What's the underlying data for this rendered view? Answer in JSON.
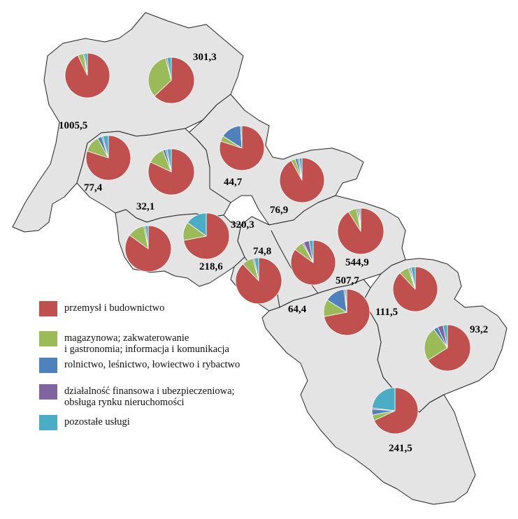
{
  "colors": {
    "industry": "#c0504d",
    "storage": "#9bbb59",
    "agriculture": "#4f81bd",
    "finance": "#8064a2",
    "other": "#4bacc6",
    "region_fill": "#e4e4e4"
  },
  "legend": [
    {
      "key": "industry",
      "lines": [
        "przemysł i budownictwo"
      ]
    },
    {
      "key": "storage",
      "lines": [
        "magazynowa; zakwaterowanie",
        "i gastronomia; informacja i komunikacja"
      ]
    },
    {
      "key": "agriculture",
      "lines": [
        "rolnictwo, leśnictwo, łowiectwo i rybactwo"
      ]
    },
    {
      "key": "finance",
      "lines": [
        "działalność finansowa i ubezpieczeniowa;",
        "obsługa rynku nieruchomości"
      ]
    },
    {
      "key": "other",
      "lines": [
        "pozostałe usługi"
      ]
    }
  ],
  "chart_data": {
    "type": "pie-map",
    "series_order": [
      "industry",
      "storage",
      "agriculture",
      "finance",
      "other"
    ],
    "units": [
      {
        "id": "u1",
        "label": "1005,5",
        "shares": {
          "industry": 93,
          "storage": 4,
          "agriculture": 1,
          "finance": 0,
          "other": 2
        }
      },
      {
        "id": "u2",
        "label": "301,3",
        "shares": {
          "industry": 63,
          "storage": 33,
          "agriculture": 0,
          "finance": 1,
          "other": 3
        }
      },
      {
        "id": "u3",
        "label": "77,4",
        "shares": {
          "industry": 80,
          "storage": 12,
          "agriculture": 3,
          "finance": 1,
          "other": 4
        }
      },
      {
        "id": "u4",
        "label": "32,1",
        "shares": {
          "industry": 82,
          "storage": 12,
          "agriculture": 2,
          "finance": 1,
          "other": 3
        }
      },
      {
        "id": "u5",
        "label": "44,7",
        "shares": {
          "industry": 80,
          "storage": 4,
          "agriculture": 15,
          "finance": 0,
          "other": 1
        }
      },
      {
        "id": "u6",
        "label": "76,9",
        "shares": {
          "industry": 92,
          "storage": 3,
          "agriculture": 2,
          "finance": 1,
          "other": 2
        }
      },
      {
        "id": "u7",
        "label": "320,3",
        "shares": {
          "industry": 72,
          "storage": 13,
          "agriculture": 0,
          "finance": 0,
          "other": 15
        }
      },
      {
        "id": "u8",
        "label": "",
        "shares": {
          "industry": 85,
          "storage": 12,
          "agriculture": 1,
          "finance": 0,
          "other": 2
        }
      },
      {
        "id": "u9",
        "label": "218,6",
        "shares": {
          "industry": 0,
          "storage": 0,
          "agriculture": 0,
          "finance": 0,
          "other": 0
        }
      },
      {
        "id": "u10",
        "label": "74,8",
        "shares": {
          "industry": 88,
          "storage": 8,
          "agriculture": 1,
          "finance": 0,
          "other": 3
        }
      },
      {
        "id": "u11",
        "label": "507,7",
        "shares": {
          "industry": 85,
          "storage": 7,
          "agriculture": 1,
          "finance": 4,
          "other": 3
        }
      },
      {
        "id": "u12",
        "label": "544,9",
        "shares": {
          "industry": 91,
          "storage": 6,
          "agriculture": 1,
          "finance": 1,
          "other": 1
        }
      },
      {
        "id": "u13",
        "label": "64,4",
        "shares": {
          "industry": 72,
          "storage": 12,
          "agriculture": 14,
          "finance": 1,
          "other": 1
        }
      },
      {
        "id": "u14",
        "label": "111,5",
        "shares": {
          "industry": 88,
          "storage": 7,
          "agriculture": 1,
          "finance": 1,
          "other": 3
        }
      },
      {
        "id": "u15",
        "label": "93,2",
        "shares": {
          "industry": 66,
          "storage": 24,
          "agriculture": 3,
          "finance": 4,
          "other": 3
        }
      },
      {
        "id": "u16",
        "label": "241,5",
        "shares": {
          "industry": 68,
          "storage": 4,
          "agriculture": 4,
          "finance": 1,
          "other": 23
        }
      }
    ]
  }
}
